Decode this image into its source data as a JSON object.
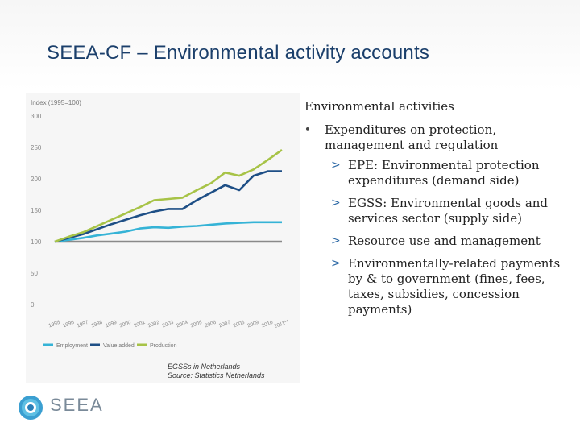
{
  "slide": {
    "title": "SEEA-CF – Environmental activity accounts"
  },
  "chart_data": {
    "type": "line",
    "y_axis_caption": "Index (1995=100)",
    "x": [
      "1995",
      "1996",
      "1997",
      "1998",
      "1999",
      "2000",
      "2001",
      "2002",
      "2003",
      "2004",
      "2005",
      "2006",
      "2007",
      "2008",
      "2009",
      "2010",
      "2011**"
    ],
    "y_ticks": [
      "0",
      "50",
      "100",
      "150",
      "200",
      "250",
      "300"
    ],
    "ylim": [
      0,
      300
    ],
    "series": [
      {
        "name": "Employment",
        "color": "#35b3d6",
        "values": [
          100,
          103,
          106,
          110,
          113,
          116,
          121,
          123,
          122,
          124,
          125,
          127,
          129,
          130,
          131,
          131,
          131
        ]
      },
      {
        "name": "Value added",
        "color": "#1e4f86",
        "values": [
          100,
          106,
          112,
          120,
          128,
          135,
          142,
          148,
          152,
          152,
          166,
          178,
          190,
          182,
          205,
          212,
          212
        ]
      },
      {
        "name": "Production",
        "color": "#a7c347",
        "values": [
          100,
          108,
          115,
          125,
          135,
          145,
          155,
          166,
          168,
          170,
          182,
          193,
          210,
          205,
          215,
          230,
          246
        ]
      }
    ],
    "grid": false,
    "legend_position": "bottom"
  },
  "chart_caption": {
    "line1": "EGSSs in Netherlands",
    "line2": "Source: Statistics Netherlands"
  },
  "content": {
    "heading": "Environmental activities",
    "bullet": "Expenditures on protection, management and regulation",
    "subitems": [
      "EPE: Environmental protection expenditures (demand side)",
      "EGSS: Environmental goods and services sector (supply side)",
      "Resource use and management",
      "Environmentally-related payments by & to government (fines, fees, taxes, subsidies, concession payments)"
    ]
  },
  "logo": {
    "text": "SEEA"
  }
}
